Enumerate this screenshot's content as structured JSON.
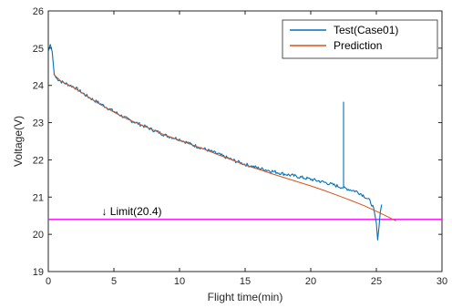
{
  "chart_data": {
    "type": "line",
    "xlabel": "Flight time(min)",
    "ylabel": "Voltage(V)",
    "xlim": [
      0,
      30
    ],
    "ylim": [
      19,
      26
    ],
    "xticks": [
      0,
      5,
      10,
      15,
      20,
      25,
      30
    ],
    "yticks": [
      19,
      20,
      21,
      22,
      23,
      24,
      25,
      26
    ],
    "grid": false,
    "legend_position": "top-right",
    "series": [
      {
        "name": "Test(Case01)",
        "color": "#0072BD",
        "x": [
          0.0,
          0.15,
          0.3,
          0.45,
          0.6,
          1.0,
          2.0,
          3.0,
          4.0,
          5.0,
          6.0,
          7.0,
          8.0,
          9.0,
          10.0,
          11.0,
          12.0,
          13.0,
          14.0,
          15.0,
          16.0,
          17.0,
          18.0,
          19.0,
          20.0,
          21.0,
          22.0,
          22.5,
          22.5,
          22.5,
          23.0,
          23.5,
          24.0,
          24.5,
          24.8,
          25.0,
          25.1,
          25.2,
          25.3,
          25.4
        ],
        "y": [
          24.9,
          25.1,
          24.9,
          24.3,
          24.2,
          24.1,
          23.95,
          23.7,
          23.5,
          23.3,
          23.1,
          22.95,
          22.8,
          22.65,
          22.55,
          22.4,
          22.28,
          22.15,
          22.0,
          21.88,
          21.78,
          21.7,
          21.62,
          21.55,
          21.48,
          21.4,
          21.3,
          21.25,
          23.55,
          21.25,
          21.2,
          21.15,
          21.05,
          20.9,
          20.7,
          20.3,
          19.85,
          20.2,
          20.6,
          20.8
        ]
      },
      {
        "name": "Prediction",
        "color": "#D95319",
        "x": [
          0.4,
          1.0,
          2.0,
          3.0,
          4.0,
          5.0,
          6.0,
          7.0,
          8.0,
          9.0,
          10.0,
          11.0,
          12.0,
          13.0,
          14.0,
          15.0,
          16.0,
          17.0,
          18.0,
          19.0,
          20.0,
          21.0,
          22.0,
          23.0,
          24.0,
          25.0,
          26.0,
          26.5
        ],
        "y": [
          24.3,
          24.1,
          23.93,
          23.7,
          23.48,
          23.28,
          23.1,
          22.95,
          22.8,
          22.65,
          22.53,
          22.4,
          22.27,
          22.13,
          22.0,
          21.86,
          21.75,
          21.63,
          21.52,
          21.41,
          21.3,
          21.18,
          21.05,
          20.92,
          20.78,
          20.62,
          20.45,
          20.36
        ]
      }
    ],
    "reference_lines": [
      {
        "axis": "y",
        "value": 20.4,
        "color": "#FF00FF"
      }
    ],
    "annotation": {
      "text": "Limit(20.4)",
      "arrow": "↓",
      "x": 4.2,
      "y": 20.4
    }
  }
}
